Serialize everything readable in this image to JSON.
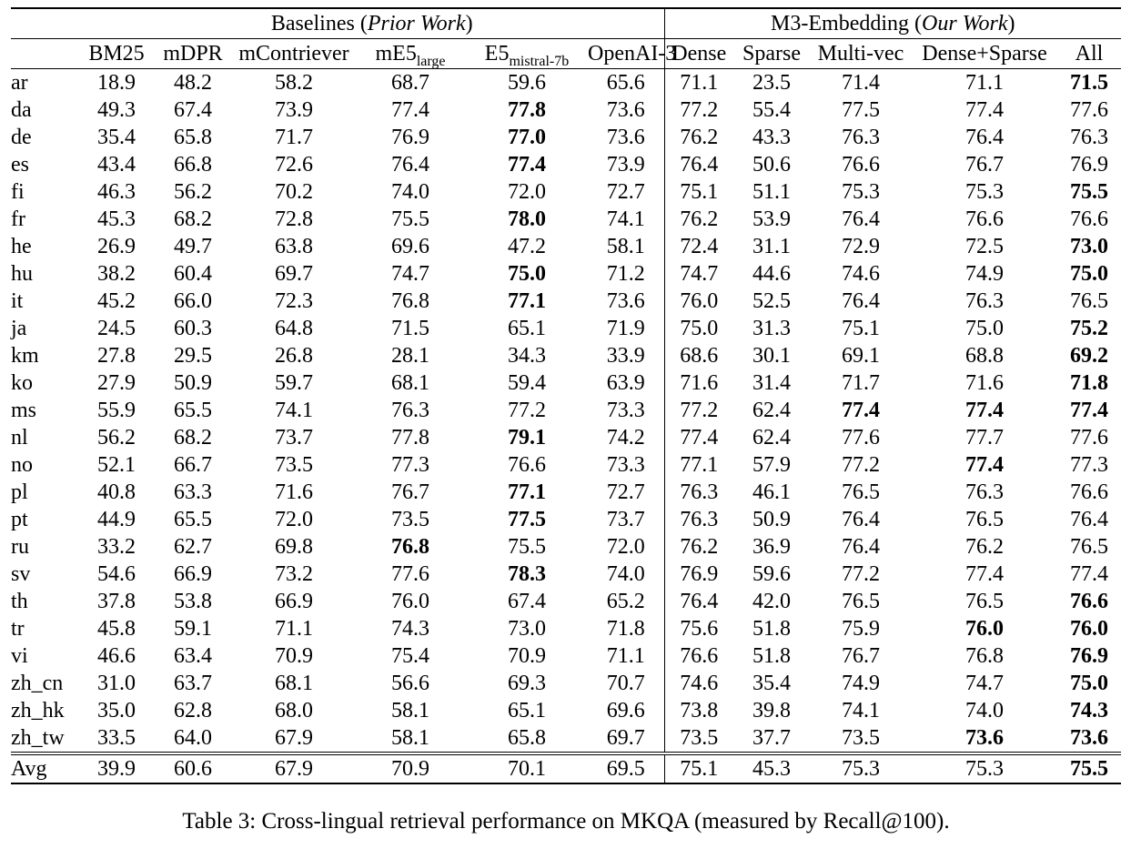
{
  "caption": "Table 3: Cross-lingual retrieval performance on MKQA (measured by Recall@100).",
  "table": {
    "group_headers": {
      "baselines": {
        "prefix": "Baselines (",
        "italic": "Prior Work",
        "suffix": ")"
      },
      "m3": {
        "prefix": "M3-Embedding (",
        "italic": "Our Work",
        "suffix": ")"
      }
    },
    "columns": {
      "baselines": [
        {
          "text": "BM25",
          "sub": ""
        },
        {
          "text": "mDPR",
          "sub": ""
        },
        {
          "text": "mContriever",
          "sub": ""
        },
        {
          "text": "mE5",
          "sub": "large"
        },
        {
          "text": "E5",
          "sub": "mistral-7b"
        },
        {
          "text": "OpenAI-3",
          "sub": ""
        }
      ],
      "m3": [
        "Dense",
        "Sparse",
        "Multi-vec",
        "Dense+Sparse",
        "All"
      ]
    },
    "rows": [
      {
        "lang": "ar",
        "cells": [
          "18.9",
          "48.2",
          "58.2",
          "68.7",
          "59.6",
          "65.6",
          "71.1",
          "23.5",
          "71.4",
          "71.1",
          "71.5"
        ],
        "bold": [
          10
        ],
        "is_avg": false
      },
      {
        "lang": "da",
        "cells": [
          "49.3",
          "67.4",
          "73.9",
          "77.4",
          "77.8",
          "73.6",
          "77.2",
          "55.4",
          "77.5",
          "77.4",
          "77.6"
        ],
        "bold": [
          4
        ],
        "is_avg": false
      },
      {
        "lang": "de",
        "cells": [
          "35.4",
          "65.8",
          "71.7",
          "76.9",
          "77.0",
          "73.6",
          "76.2",
          "43.3",
          "76.3",
          "76.4",
          "76.3"
        ],
        "bold": [
          4
        ],
        "is_avg": false
      },
      {
        "lang": "es",
        "cells": [
          "43.4",
          "66.8",
          "72.6",
          "76.4",
          "77.4",
          "73.9",
          "76.4",
          "50.6",
          "76.6",
          "76.7",
          "76.9"
        ],
        "bold": [
          4
        ],
        "is_avg": false
      },
      {
        "lang": "fi",
        "cells": [
          "46.3",
          "56.2",
          "70.2",
          "74.0",
          "72.0",
          "72.7",
          "75.1",
          "51.1",
          "75.3",
          "75.3",
          "75.5"
        ],
        "bold": [
          10
        ],
        "is_avg": false
      },
      {
        "lang": "fr",
        "cells": [
          "45.3",
          "68.2",
          "72.8",
          "75.5",
          "78.0",
          "74.1",
          "76.2",
          "53.9",
          "76.4",
          "76.6",
          "76.6"
        ],
        "bold": [
          4
        ],
        "is_avg": false
      },
      {
        "lang": "he",
        "cells": [
          "26.9",
          "49.7",
          "63.8",
          "69.6",
          "47.2",
          "58.1",
          "72.4",
          "31.1",
          "72.9",
          "72.5",
          "73.0"
        ],
        "bold": [
          10
        ],
        "is_avg": false
      },
      {
        "lang": "hu",
        "cells": [
          "38.2",
          "60.4",
          "69.7",
          "74.7",
          "75.0",
          "71.2",
          "74.7",
          "44.6",
          "74.6",
          "74.9",
          "75.0"
        ],
        "bold": [
          4,
          10
        ],
        "is_avg": false
      },
      {
        "lang": "it",
        "cells": [
          "45.2",
          "66.0",
          "72.3",
          "76.8",
          "77.1",
          "73.6",
          "76.0",
          "52.5",
          "76.4",
          "76.3",
          "76.5"
        ],
        "bold": [
          4
        ],
        "is_avg": false
      },
      {
        "lang": "ja",
        "cells": [
          "24.5",
          "60.3",
          "64.8",
          "71.5",
          "65.1",
          "71.9",
          "75.0",
          "31.3",
          "75.1",
          "75.0",
          "75.2"
        ],
        "bold": [
          10
        ],
        "is_avg": false
      },
      {
        "lang": "km",
        "cells": [
          "27.8",
          "29.5",
          "26.8",
          "28.1",
          "34.3",
          "33.9",
          "68.6",
          "30.1",
          "69.1",
          "68.8",
          "69.2"
        ],
        "bold": [
          10
        ],
        "is_avg": false
      },
      {
        "lang": "ko",
        "cells": [
          "27.9",
          "50.9",
          "59.7",
          "68.1",
          "59.4",
          "63.9",
          "71.6",
          "31.4",
          "71.7",
          "71.6",
          "71.8"
        ],
        "bold": [
          10
        ],
        "is_avg": false
      },
      {
        "lang": "ms",
        "cells": [
          "55.9",
          "65.5",
          "74.1",
          "76.3",
          "77.2",
          "73.3",
          "77.2",
          "62.4",
          "77.4",
          "77.4",
          "77.4"
        ],
        "bold": [
          8,
          9,
          10
        ],
        "is_avg": false
      },
      {
        "lang": "nl",
        "cells": [
          "56.2",
          "68.2",
          "73.7",
          "77.8",
          "79.1",
          "74.2",
          "77.4",
          "62.4",
          "77.6",
          "77.7",
          "77.6"
        ],
        "bold": [
          4
        ],
        "is_avg": false
      },
      {
        "lang": "no",
        "cells": [
          "52.1",
          "66.7",
          "73.5",
          "77.3",
          "76.6",
          "73.3",
          "77.1",
          "57.9",
          "77.2",
          "77.4",
          "77.3"
        ],
        "bold": [
          9
        ],
        "is_avg": false
      },
      {
        "lang": "pl",
        "cells": [
          "40.8",
          "63.3",
          "71.6",
          "76.7",
          "77.1",
          "72.7",
          "76.3",
          "46.1",
          "76.5",
          "76.3",
          "76.6"
        ],
        "bold": [
          4
        ],
        "is_avg": false
      },
      {
        "lang": "pt",
        "cells": [
          "44.9",
          "65.5",
          "72.0",
          "73.5",
          "77.5",
          "73.7",
          "76.3",
          "50.9",
          "76.4",
          "76.5",
          "76.4"
        ],
        "bold": [
          4
        ],
        "is_avg": false
      },
      {
        "lang": "ru",
        "cells": [
          "33.2",
          "62.7",
          "69.8",
          "76.8",
          "75.5",
          "72.0",
          "76.2",
          "36.9",
          "76.4",
          "76.2",
          "76.5"
        ],
        "bold": [
          3
        ],
        "is_avg": false
      },
      {
        "lang": "sv",
        "cells": [
          "54.6",
          "66.9",
          "73.2",
          "77.6",
          "78.3",
          "74.0",
          "76.9",
          "59.6",
          "77.2",
          "77.4",
          "77.4"
        ],
        "bold": [
          4
        ],
        "is_avg": false
      },
      {
        "lang": "th",
        "cells": [
          "37.8",
          "53.8",
          "66.9",
          "76.0",
          "67.4",
          "65.2",
          "76.4",
          "42.0",
          "76.5",
          "76.5",
          "76.6"
        ],
        "bold": [
          10
        ],
        "is_avg": false
      },
      {
        "lang": "tr",
        "cells": [
          "45.8",
          "59.1",
          "71.1",
          "74.3",
          "73.0",
          "71.8",
          "75.6",
          "51.8",
          "75.9",
          "76.0",
          "76.0"
        ],
        "bold": [
          9,
          10
        ],
        "is_avg": false
      },
      {
        "lang": "vi",
        "cells": [
          "46.6",
          "63.4",
          "70.9",
          "75.4",
          "70.9",
          "71.1",
          "76.6",
          "51.8",
          "76.7",
          "76.8",
          "76.9"
        ],
        "bold": [
          10
        ],
        "is_avg": false
      },
      {
        "lang": "zh_cn",
        "cells": [
          "31.0",
          "63.7",
          "68.1",
          "56.6",
          "69.3",
          "70.7",
          "74.6",
          "35.4",
          "74.9",
          "74.7",
          "75.0"
        ],
        "bold": [
          10
        ],
        "is_avg": false
      },
      {
        "lang": "zh_hk",
        "cells": [
          "35.0",
          "62.8",
          "68.0",
          "58.1",
          "65.1",
          "69.6",
          "73.8",
          "39.8",
          "74.1",
          "74.0",
          "74.3"
        ],
        "bold": [
          10
        ],
        "is_avg": false
      },
      {
        "lang": "zh_tw",
        "cells": [
          "33.5",
          "64.0",
          "67.9",
          "58.1",
          "65.8",
          "69.7",
          "73.5",
          "37.7",
          "73.5",
          "73.6",
          "73.6"
        ],
        "bold": [
          9,
          10
        ],
        "is_avg": false
      },
      {
        "lang": "Avg",
        "cells": [
          "39.9",
          "60.6",
          "67.9",
          "70.9",
          "70.1",
          "69.5",
          "75.1",
          "45.3",
          "75.3",
          "75.3",
          "75.5"
        ],
        "bold": [
          10
        ],
        "is_avg": true
      }
    ]
  }
}
